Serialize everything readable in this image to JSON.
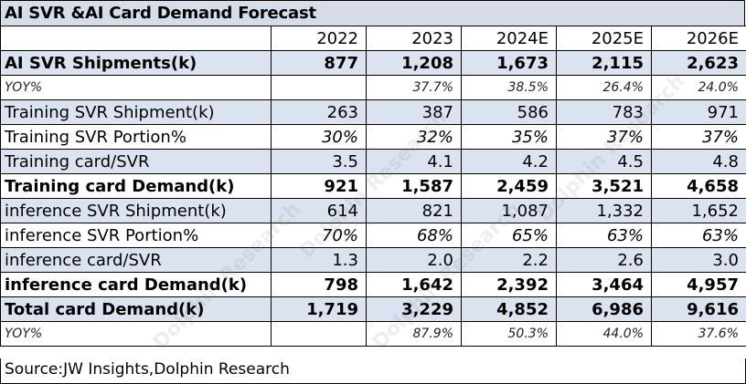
{
  "title": "AI SVR &AI Card Demand Forecast",
  "columns": [
    "2022",
    "2023",
    "2024E",
    "2025E",
    "2026E"
  ],
  "rows": [
    {
      "label": "AI SVR Shipments(k)",
      "values": [
        "877",
        "1,208",
        "1,673",
        "2,115",
        "2,623"
      ]
    },
    {
      "label": "YOY%",
      "values": [
        "",
        "37.7%",
        "38.5%",
        "26.4%",
        "24.0%"
      ]
    },
    {
      "label": "Training SVR Shipment(k)",
      "values": [
        "263",
        "387",
        "586",
        "783",
        "971"
      ]
    },
    {
      "label": "Training SVR Portion%",
      "values": [
        "30%",
        "32%",
        "35%",
        "37%",
        "37%"
      ]
    },
    {
      "label": "Training card/SVR",
      "values": [
        "3.5",
        "4.1",
        "4.2",
        "4.5",
        "4.8"
      ]
    },
    {
      "label": "Training card Demand(k)",
      "values": [
        "921",
        "1,587",
        "2,459",
        "3,521",
        "4,658"
      ]
    },
    {
      "label": "inference SVR Shipment(k)",
      "values": [
        "614",
        "821",
        "1,087",
        "1,332",
        "1,652"
      ]
    },
    {
      "label": "inference SVR Portion%",
      "values": [
        "70%",
        "68%",
        "65%",
        "63%",
        "63%"
      ]
    },
    {
      "label": "inference card/SVR",
      "values": [
        "1.3",
        "2.0",
        "2.2",
        "2.6",
        "3.0"
      ]
    },
    {
      "label": "inference card Demand(k)",
      "values": [
        "798",
        "1,642",
        "2,392",
        "3,464",
        "4,957"
      ]
    },
    {
      "label": "Total card Demand(k)",
      "values": [
        "1,719",
        "3,229",
        "4,852",
        "6,986",
        "9,616"
      ]
    },
    {
      "label": "YOY%",
      "values": [
        "",
        "87.9%",
        "50.3%",
        "44.0%",
        "37.6%"
      ]
    }
  ],
  "source": "Source:JW Insights,Dolphin Research",
  "watermark": "Dolphin Research"
}
